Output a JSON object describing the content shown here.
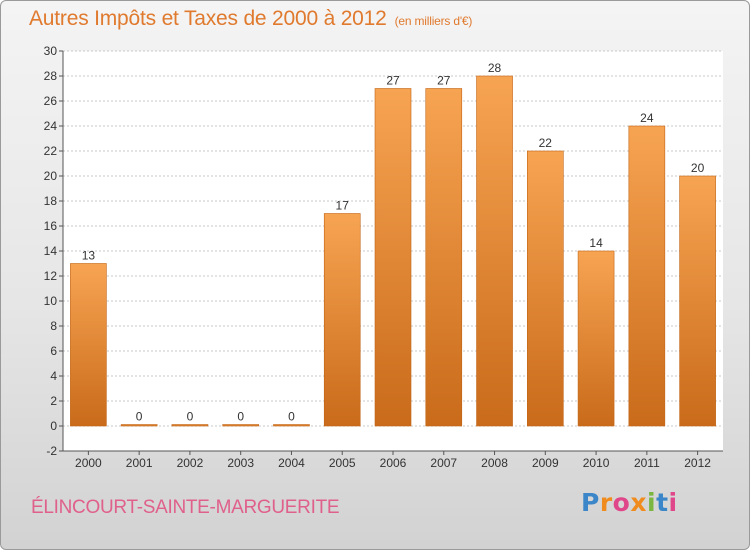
{
  "chart_data": {
    "type": "bar",
    "title": "Autres Impôts et Taxes de 2000 à 2012",
    "subtitle": "(en milliers d'€)",
    "categories": [
      "2000",
      "2001",
      "2002",
      "2003",
      "2004",
      "2005",
      "2006",
      "2007",
      "2008",
      "2009",
      "2010",
      "2011",
      "2012"
    ],
    "values": [
      13,
      0,
      0,
      0,
      0,
      17,
      27,
      27,
      28,
      22,
      14,
      24,
      20
    ],
    "ylim": [
      -2,
      30
    ],
    "yticks": [
      -2,
      0,
      2,
      4,
      6,
      8,
      10,
      12,
      14,
      16,
      18,
      20,
      22,
      24,
      26,
      28,
      30
    ],
    "grid": true,
    "xlabel": "",
    "ylabel": "",
    "bar_color_top": "#f7a452",
    "bar_color_bottom": "#c96b1a"
  },
  "footer": {
    "commune": "ÉLINCOURT-SAINTE-MARGUERITE"
  },
  "logo": {
    "letters": [
      "P",
      "r",
      "o",
      "x",
      "i",
      "t",
      "i"
    ],
    "colors": [
      "#3a86c8",
      "#f08c1e",
      "#e0468a",
      "#f08c1e",
      "#7ab640",
      "#3a86c8",
      "#e0468a"
    ]
  }
}
